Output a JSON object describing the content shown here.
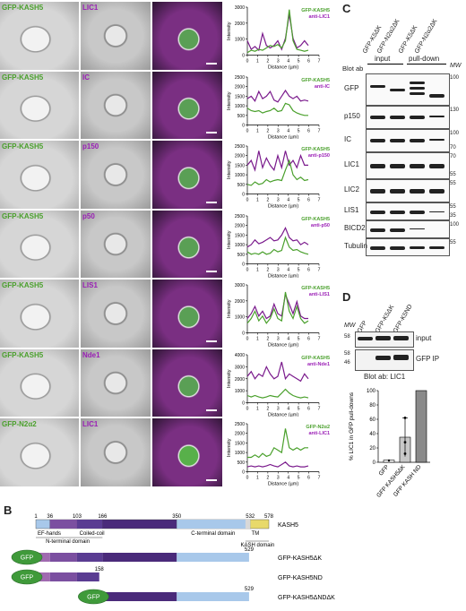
{
  "panel_letters": {
    "a": "A",
    "b": "B",
    "c": "C",
    "d": "D"
  },
  "panel_a": {
    "rows": [
      {
        "green": "GFP-KASH5",
        "purple": "LIC1",
        "legend_g": "GFP-KASH5",
        "legend_p": "anti-LIC1",
        "ticks_y": [
          "3000",
          "2000",
          "1000",
          "0"
        ],
        "green_line": [
          0.05,
          0.1,
          0.08,
          0.12,
          0.1,
          0.15,
          0.2,
          0.18,
          0.22,
          0.15,
          0.3,
          0.95,
          0.3,
          0.12,
          0.1,
          0.08,
          0.1
        ],
        "purple_line": [
          0.3,
          0.12,
          0.18,
          0.1,
          0.45,
          0.2,
          0.15,
          0.2,
          0.3,
          0.12,
          0.35,
          0.85,
          0.35,
          0.15,
          0.2,
          0.3,
          0.2
        ]
      },
      {
        "green": "GFP-KASH5",
        "purple": "IC",
        "legend_g": "GFP-KASH5",
        "legend_p": "anti-IC",
        "ticks_y": [
          "2500",
          "2000",
          "1500",
          "1000",
          "500",
          "0"
        ],
        "green_line": [
          0.35,
          0.3,
          0.28,
          0.3,
          0.25,
          0.28,
          0.3,
          0.35,
          0.28,
          0.3,
          0.45,
          0.42,
          0.3,
          0.25,
          0.22,
          0.2,
          0.2
        ],
        "purple_line": [
          0.55,
          0.6,
          0.5,
          0.7,
          0.55,
          0.6,
          0.7,
          0.52,
          0.48,
          0.6,
          0.72,
          0.6,
          0.55,
          0.6,
          0.5,
          0.52,
          0.5
        ]
      },
      {
        "green": "GFP-KASH5",
        "purple": "p150",
        "legend_g": "GFP-KASH5",
        "legend_p": "anti-p150",
        "ticks_y": [
          "2500",
          "2000",
          "1500",
          "1000",
          "500",
          "0"
        ],
        "green_line": [
          0.2,
          0.18,
          0.25,
          0.2,
          0.22,
          0.3,
          0.25,
          0.28,
          0.3,
          0.28,
          0.5,
          0.7,
          0.4,
          0.3,
          0.35,
          0.28,
          0.3
        ],
        "purple_line": [
          0.6,
          0.7,
          0.5,
          0.9,
          0.55,
          0.75,
          0.6,
          0.5,
          0.8,
          0.55,
          0.9,
          0.6,
          0.7,
          0.55,
          0.8,
          0.6,
          0.6
        ]
      },
      {
        "green": "GFP-KASH5",
        "purple": "p50",
        "legend_g": "GFP-KASH5",
        "legend_p": "anti-p50",
        "ticks_y": [
          "2500",
          "2000",
          "1500",
          "1000",
          "500",
          "0"
        ],
        "green_line": [
          0.25,
          0.2,
          0.22,
          0.2,
          0.25,
          0.2,
          0.22,
          0.3,
          0.25,
          0.28,
          0.55,
          0.35,
          0.28,
          0.3,
          0.25,
          0.22,
          0.2
        ],
        "purple_line": [
          0.35,
          0.4,
          0.5,
          0.42,
          0.45,
          0.5,
          0.55,
          0.48,
          0.5,
          0.6,
          0.75,
          0.55,
          0.48,
          0.5,
          0.4,
          0.45,
          0.4
        ]
      },
      {
        "green": "GFP-KASH5",
        "purple": "LIS1",
        "legend_g": "GFP-KASH5",
        "legend_p": "anti-LIS1",
        "ticks_y": [
          "3000",
          "2000",
          "1000",
          "0"
        ],
        "green_line": [
          0.2,
          0.3,
          0.45,
          0.25,
          0.35,
          0.2,
          0.3,
          0.5,
          0.3,
          0.25,
          0.85,
          0.45,
          0.3,
          0.55,
          0.3,
          0.2,
          0.25
        ],
        "purple_line": [
          0.3,
          0.4,
          0.55,
          0.35,
          0.45,
          0.3,
          0.35,
          0.6,
          0.4,
          0.35,
          0.8,
          0.6,
          0.4,
          0.65,
          0.35,
          0.3,
          0.3
        ]
      },
      {
        "green": "GFP-KASH5",
        "purple": "Nde1",
        "legend_g": "GFP-KASH5",
        "legend_p": "anti-Nde1",
        "ticks_y": [
          "4000",
          "3000",
          "2000",
          "1000",
          "0"
        ],
        "green_line": [
          0.15,
          0.12,
          0.15,
          0.12,
          0.1,
          0.12,
          0.15,
          0.13,
          0.12,
          0.2,
          0.28,
          0.2,
          0.15,
          0.12,
          0.1,
          0.12,
          0.1
        ],
        "purple_line": [
          0.55,
          0.65,
          0.5,
          0.6,
          0.55,
          0.75,
          0.6,
          0.5,
          0.55,
          0.85,
          0.5,
          0.6,
          0.55,
          0.5,
          0.45,
          0.6,
          0.5
        ]
      },
      {
        "green": "GFP-N2α2",
        "purple": "LIC1",
        "legend_g": "GFP-N2α2",
        "legend_p": "anti-LIC1",
        "ticks_y": [
          "2500",
          "2000",
          "1500",
          "1000",
          "500",
          "0"
        ],
        "green_line": [
          0.3,
          0.3,
          0.35,
          0.3,
          0.38,
          0.32,
          0.35,
          0.5,
          0.45,
          0.4,
          0.9,
          0.5,
          0.45,
          0.5,
          0.45,
          0.5,
          0.5
        ],
        "purple_line": [
          0.1,
          0.12,
          0.1,
          0.12,
          0.1,
          0.12,
          0.15,
          0.12,
          0.1,
          0.15,
          0.2,
          0.12,
          0.1,
          0.12,
          0.1,
          0.1,
          0.12
        ]
      }
    ],
    "ylabel": "Intensity",
    "xlabel": "Distance (µm)",
    "xticks": [
      "0",
      "1",
      "2",
      "3",
      "4",
      "5",
      "6",
      "7"
    ]
  },
  "panel_b": {
    "numbers": [
      "1",
      "36",
      "103",
      "166",
      "350",
      "532",
      "578"
    ],
    "domains": [
      "EF-hands",
      "Coiled-coil",
      "C-terminal domain",
      "TM"
    ],
    "subdomains": [
      "N-terminal domain",
      "KASH domain"
    ],
    "protein": "KASH5",
    "constructs": [
      {
        "name": "GFP-KASH5ΔK",
        "end": "529",
        "gfp": "GFP"
      },
      {
        "name": "GFP-KASH5ND",
        "end": "158",
        "gfp": "GFP"
      },
      {
        "name": "GFP-KASH5ΔNDΔK",
        "end": "529",
        "gfp": "GFP"
      }
    ],
    "colors": {
      "ef": "#7b4fa0",
      "nterm": "#c97fbf",
      "coil": "#4a2a7a",
      "cterm": "#a8c8ea",
      "tm": "#e8d96a",
      "gfp": "#3f9a3a"
    }
  },
  "panel_c": {
    "lanes": [
      "GFP-K5ΔK",
      "GFP-N2α2ΔK",
      "GFP-K5ΔK",
      "GFP-N2α2ΔK"
    ],
    "groups": [
      "input",
      "pull-down"
    ],
    "blot_ab_label": "Blot ab",
    "mw_label": "MW",
    "rows": [
      {
        "label": "GFP",
        "mw": [
          "100"
        ]
      },
      {
        "label": "p150",
        "mw": [
          "130"
        ]
      },
      {
        "label": "IC",
        "mw": [
          "100",
          "70"
        ]
      },
      {
        "label": "LIC1",
        "mw": [
          "70",
          "55"
        ]
      },
      {
        "label": "LIC2",
        "mw": [
          "55"
        ]
      },
      {
        "label": "LIS1",
        "mw": [
          "55",
          "35"
        ]
      },
      {
        "label": "BICD2",
        "mw": [
          "100"
        ]
      },
      {
        "label": "Tubulin",
        "mw": [
          "55"
        ]
      }
    ]
  },
  "panel_d": {
    "lanes": [
      "GFP",
      "GFP-K5ΔK",
      "GFP-K5ND"
    ],
    "mw_label": "MW",
    "input_label": "input",
    "ip_label": "GFP IP",
    "blot_label": "Blot ab: LIC1",
    "mw_input": [
      "58"
    ],
    "mw_ip": [
      "58",
      "46"
    ],
    "chart_data": {
      "type": "bar",
      "categories": [
        "GFP",
        "GFP KASH5ΔK",
        "GFP KASH ND"
      ],
      "values": [
        3,
        35,
        100
      ],
      "ylabel": "% LIC1 in GFP pull-downs",
      "yticks": [
        "0",
        "20",
        "40",
        "60",
        "80",
        "100"
      ],
      "ylim": [
        0,
        100
      ]
    }
  }
}
